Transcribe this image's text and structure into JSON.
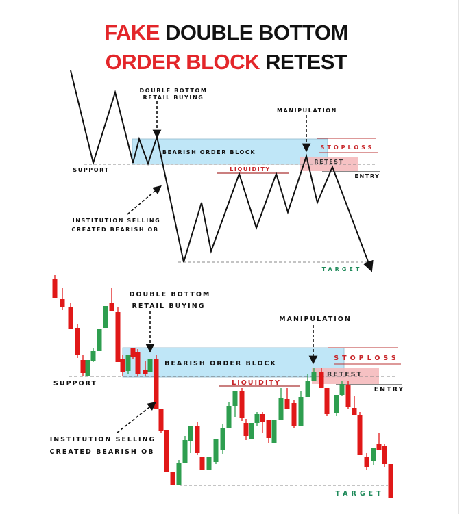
{
  "title": {
    "line1_red": "FAKE",
    "line1_black": "DOUBLE BOTTOM",
    "line2_red": "ORDER BLOCK",
    "line2_black": "RETEST"
  },
  "colors": {
    "accent_red": "#e3262a",
    "bullish": "#2e9e4f",
    "bearish": "#e01818",
    "order_block": "#bfe6f7",
    "retest_zone": "#f4b6b8",
    "target": "#1f8a5a"
  },
  "labels": {
    "double_bottom": "DOUBLE BOTTOM",
    "retail_buying": "RETAIL BUYING",
    "manipulation": "MANIPULATION",
    "bearish_order_block": "BEARISH ORDER BLOCK",
    "stoploss": "STOPLOSS",
    "retest": "RETEST",
    "liquidity": "LIQUIDITY",
    "entry": "ENTRY",
    "support": "SUPPORT",
    "institution_selling": "INSTITUTION SELLING",
    "created_bearish_ob": "CREATED BEARISH OB",
    "target": "TARGET"
  }
}
